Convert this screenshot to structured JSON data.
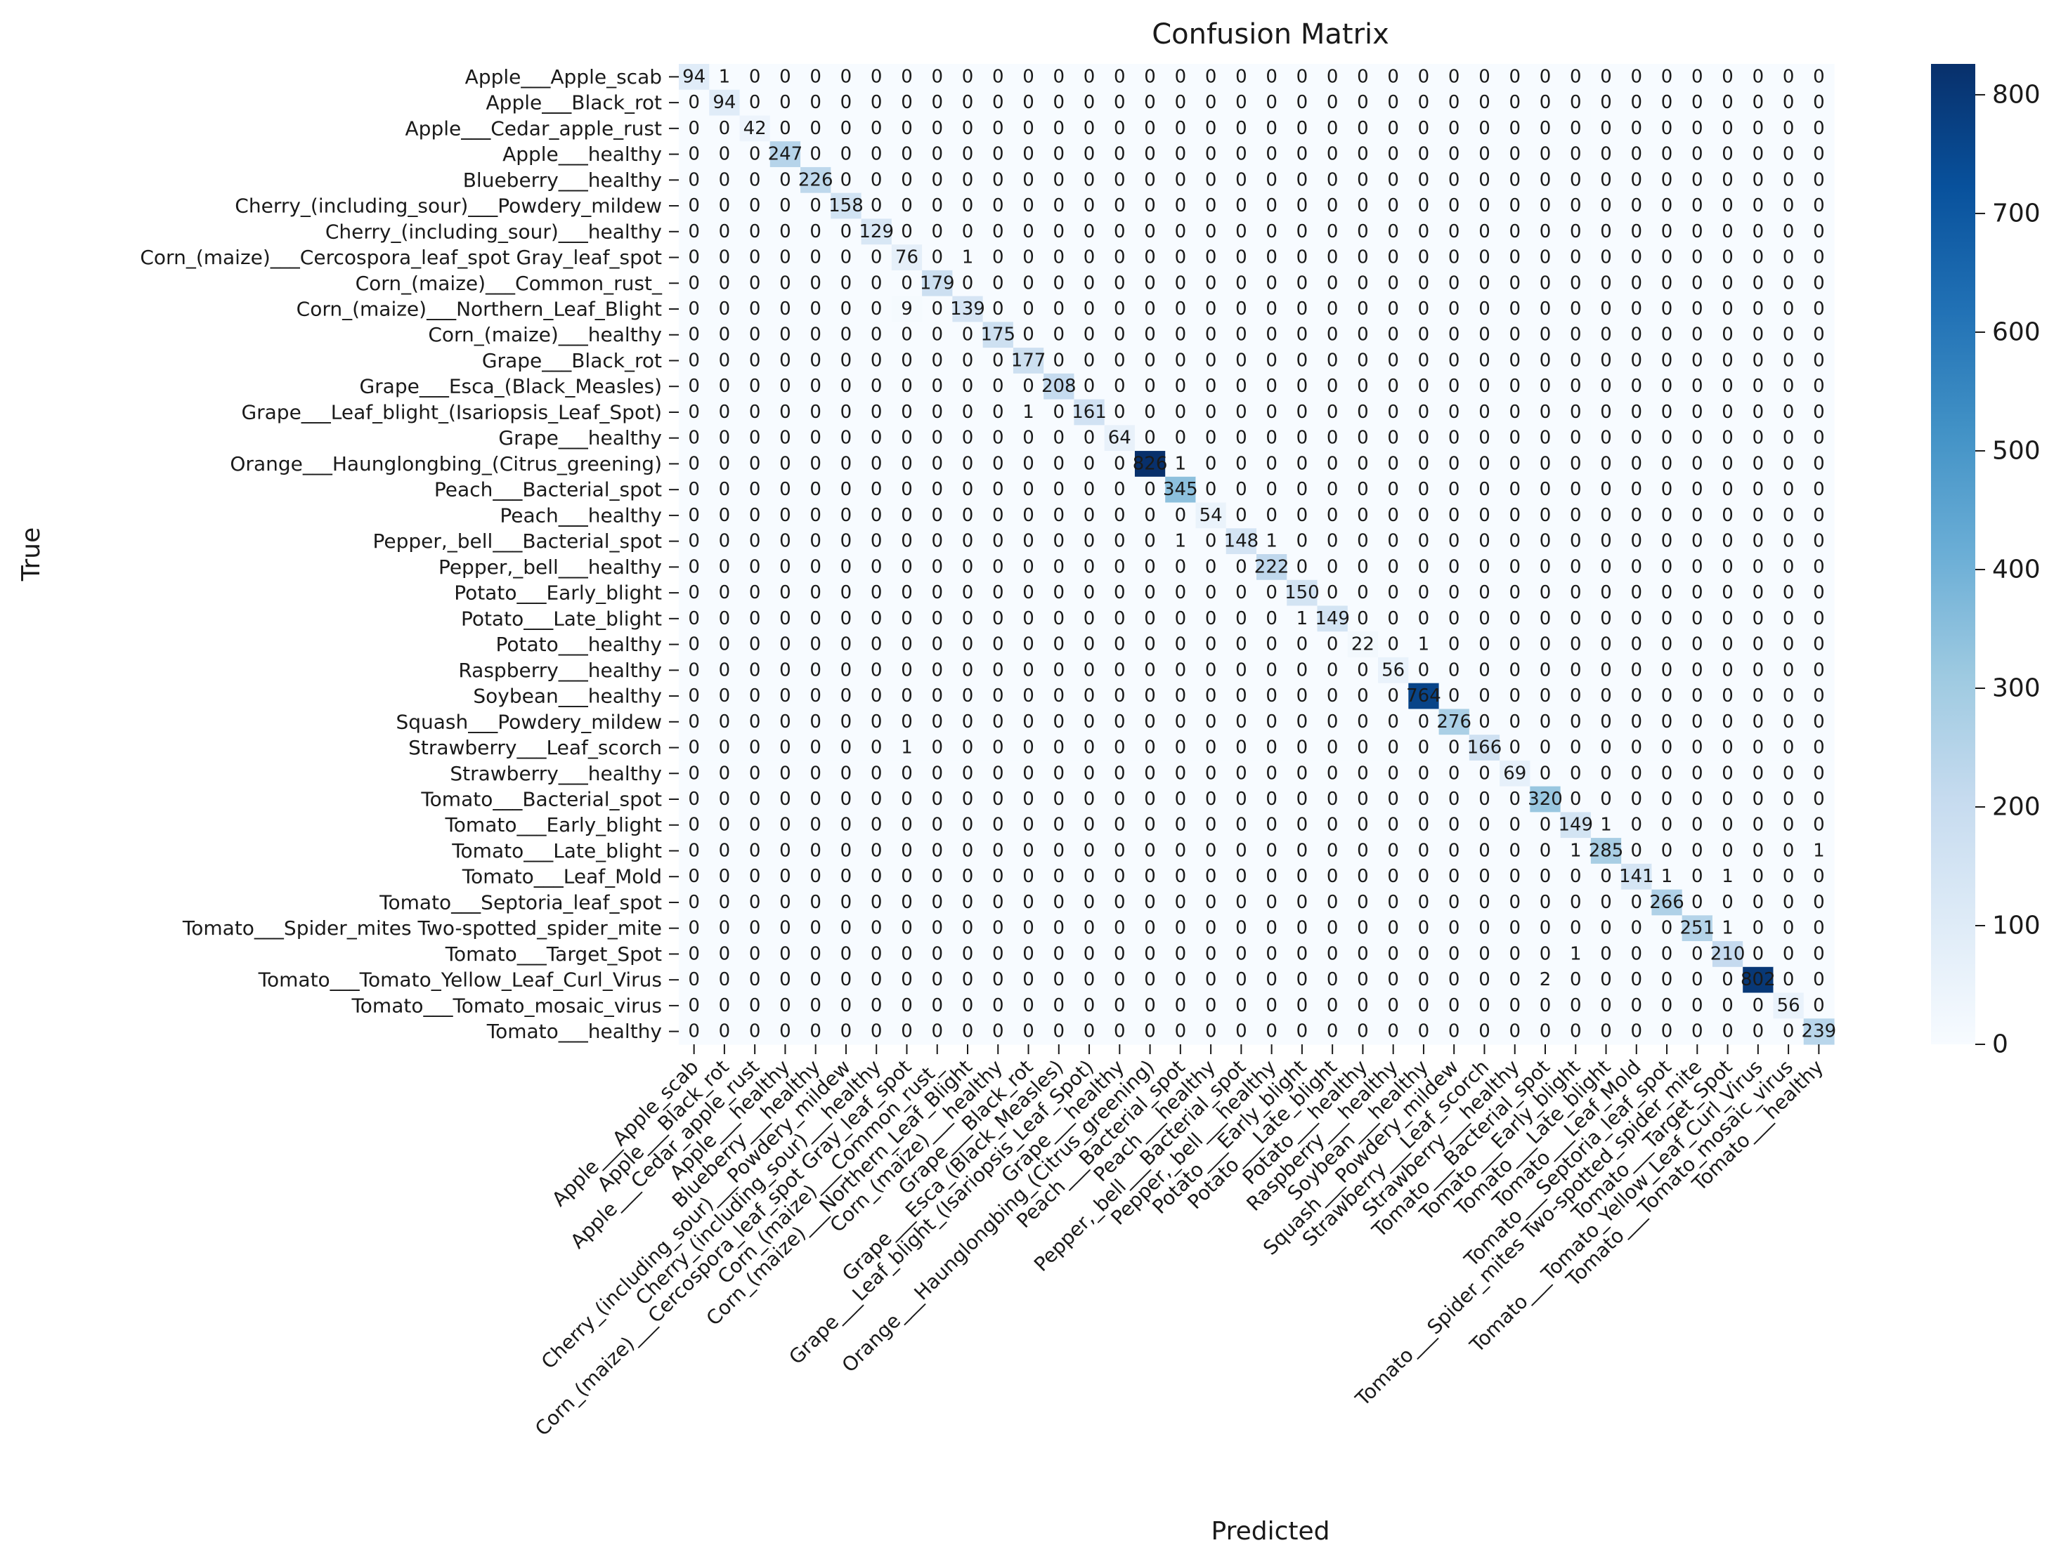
{
  "chart_data": {
    "type": "heatmap",
    "title": "Confusion Matrix",
    "xlabel": "Predicted",
    "ylabel": "True",
    "colormap": "Blues",
    "color_low": "#f7fbff",
    "color_high": "#08306b",
    "vmin": 0,
    "vmax": 826,
    "colorbar_ticks": [
      0,
      100,
      200,
      300,
      400,
      500,
      600,
      700,
      800
    ],
    "classes": [
      "Apple___Apple_scab",
      "Apple___Black_rot",
      "Apple___Cedar_apple_rust",
      "Apple___healthy",
      "Blueberry___healthy",
      "Cherry_(including_sour)___Powdery_mildew",
      "Cherry_(including_sour)___healthy",
      "Corn_(maize)___Cercospora_leaf_spot Gray_leaf_spot",
      "Corn_(maize)___Common_rust_",
      "Corn_(maize)___Northern_Leaf_Blight",
      "Corn_(maize)___healthy",
      "Grape___Black_rot",
      "Grape___Esca_(Black_Measles)",
      "Grape___Leaf_blight_(Isariopsis_Leaf_Spot)",
      "Grape___healthy",
      "Orange___Haunglongbing_(Citrus_greening)",
      "Peach___Bacterial_spot",
      "Peach___healthy",
      "Pepper,_bell___Bacterial_spot",
      "Pepper,_bell___healthy",
      "Potato___Early_blight",
      "Potato___Late_blight",
      "Potato___healthy",
      "Raspberry___healthy",
      "Soybean___healthy",
      "Squash___Powdery_mildew",
      "Strawberry___Leaf_scorch",
      "Strawberry___healthy",
      "Tomato___Bacterial_spot",
      "Tomato___Early_blight",
      "Tomato___Late_blight",
      "Tomato___Leaf_Mold",
      "Tomato___Septoria_leaf_spot",
      "Tomato___Spider_mites Two-spotted_spider_mite",
      "Tomato___Target_Spot",
      "Tomato___Tomato_Yellow_Leaf_Curl_Virus",
      "Tomato___Tomato_mosaic_virus",
      "Tomato___healthy"
    ],
    "diagonal": [
      94,
      94,
      42,
      247,
      226,
      158,
      129,
      76,
      179,
      139,
      175,
      177,
      208,
      161,
      64,
      826,
      345,
      54,
      148,
      222,
      150,
      149,
      22,
      56,
      764,
      276,
      166,
      69,
      320,
      149,
      285,
      141,
      266,
      251,
      210,
      802,
      56,
      239
    ],
    "off_diagonal": [
      {
        "row": 0,
        "col": 1,
        "value": 1
      },
      {
        "row": 7,
        "col": 9,
        "value": 1
      },
      {
        "row": 9,
        "col": 7,
        "value": 9
      },
      {
        "row": 13,
        "col": 11,
        "value": 1
      },
      {
        "row": 15,
        "col": 16,
        "value": 1
      },
      {
        "row": 18,
        "col": 16,
        "value": 1
      },
      {
        "row": 18,
        "col": 19,
        "value": 1
      },
      {
        "row": 21,
        "col": 20,
        "value": 1
      },
      {
        "row": 22,
        "col": 24,
        "value": 1
      },
      {
        "row": 26,
        "col": 7,
        "value": 1
      },
      {
        "row": 29,
        "col": 30,
        "value": 1
      },
      {
        "row": 30,
        "col": 29,
        "value": 1
      },
      {
        "row": 30,
        "col": 37,
        "value": 1
      },
      {
        "row": 31,
        "col": 32,
        "value": 1
      },
      {
        "row": 31,
        "col": 34,
        "value": 1
      },
      {
        "row": 33,
        "col": 34,
        "value": 1
      },
      {
        "row": 34,
        "col": 29,
        "value": 1
      },
      {
        "row": 35,
        "col": 28,
        "value": 2
      }
    ]
  }
}
